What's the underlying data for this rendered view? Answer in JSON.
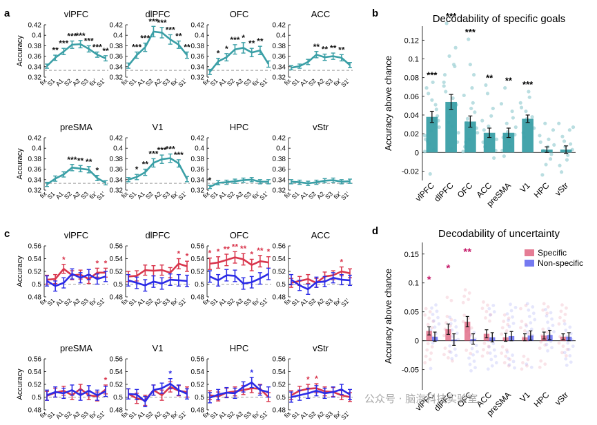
{
  "figure": {
    "panel_letters": [
      "a",
      "b",
      "c",
      "d"
    ],
    "watermark": "公众号 · 脑海科技实验室"
  },
  "colors": {
    "teal": "#3a9fa6",
    "teal_dots": "#a9d6da",
    "red": "#d9364d",
    "blue": "#2b2be6",
    "specific_fill": "#e06682",
    "nonspecific_fill": "#5d63ef",
    "star_teal_panel": "#111111",
    "star_red": "#d9364d",
    "star_blue": "#2b2be6",
    "star_d": "#c51b6a",
    "chance_line": "#999999"
  },
  "chart_data": [
    {
      "panel": "a",
      "type": "line",
      "x_ticks": [
        "fix",
        "S1",
        "A1",
        "S2",
        "A2",
        "S3",
        "fix'",
        "S1'"
      ],
      "ylabel": "Accuracy",
      "ylim": [
        0.32,
        0.42
      ],
      "y_ticks": [
        0.32,
        0.34,
        0.36,
        0.38,
        0.4,
        0.42
      ],
      "chance": 0.333,
      "subplots": [
        {
          "title": "vlPFC",
          "values": [
            0.341,
            0.357,
            0.369,
            0.382,
            0.383,
            0.374,
            0.363,
            0.356
          ],
          "errors": [
            0.004,
            0.005,
            0.006,
            0.007,
            0.007,
            0.006,
            0.005,
            0.005
          ],
          "stars": [
            "",
            "**",
            "***",
            "***",
            "***",
            "***",
            "***",
            "**"
          ]
        },
        {
          "title": "dlPFC",
          "values": [
            0.342,
            0.362,
            0.377,
            0.407,
            0.405,
            0.392,
            0.382,
            0.362
          ],
          "errors": [
            0.005,
            0.006,
            0.008,
            0.01,
            0.01,
            0.009,
            0.007,
            0.006
          ],
          "stars": [
            "",
            "***",
            "***",
            "***",
            "***",
            "***",
            "**",
            "**"
          ]
        },
        {
          "title": "OFC",
          "values": [
            0.33,
            0.35,
            0.358,
            0.373,
            0.376,
            0.367,
            0.371,
            0.345
          ],
          "errors": [
            0.005,
            0.006,
            0.007,
            0.009,
            0.01,
            0.008,
            0.008,
            0.006
          ],
          "stars": [
            "",
            "*",
            "*",
            "***",
            "*",
            "**",
            "**",
            ""
          ]
        },
        {
          "title": "ACC",
          "values": [
            0.338,
            0.341,
            0.349,
            0.363,
            0.358,
            0.36,
            0.357,
            0.343
          ],
          "errors": [
            0.004,
            0.004,
            0.005,
            0.006,
            0.006,
            0.006,
            0.006,
            0.005
          ],
          "stars": [
            "",
            "",
            "",
            "**",
            "**",
            "**",
            "**",
            ""
          ]
        },
        {
          "title": "preSMA",
          "values": [
            0.331,
            0.342,
            0.35,
            0.363,
            0.361,
            0.359,
            0.343,
            0.334
          ],
          "errors": [
            0.004,
            0.005,
            0.005,
            0.006,
            0.006,
            0.006,
            0.005,
            0.004
          ],
          "stars": [
            "",
            "",
            "",
            "***",
            "**",
            "**",
            "*",
            ""
          ]
        },
        {
          "title": "V1",
          "values": [
            0.34,
            0.345,
            0.354,
            0.372,
            0.379,
            0.381,
            0.371,
            0.341
          ],
          "errors": [
            0.004,
            0.005,
            0.006,
            0.008,
            0.008,
            0.008,
            0.007,
            0.005
          ],
          "stars": [
            "",
            "*",
            "**",
            "***",
            "***",
            "***",
            "***",
            ""
          ]
        },
        {
          "title": "HPC",
          "values": [
            0.326,
            0.334,
            0.335,
            0.337,
            0.339,
            0.34,
            0.336,
            0.336
          ],
          "errors": [
            0.003,
            0.004,
            0.004,
            0.004,
            0.004,
            0.004,
            0.004,
            0.004
          ],
          "stars": [
            "*",
            "",
            "",
            "",
            "",
            "",
            "",
            ""
          ]
        },
        {
          "title": "vStr",
          "values": [
            0.336,
            0.335,
            0.333,
            0.335,
            0.338,
            0.339,
            0.336,
            0.337
          ],
          "errors": [
            0.004,
            0.004,
            0.004,
            0.004,
            0.004,
            0.004,
            0.004,
            0.004
          ],
          "stars": [
            "",
            "",
            "",
            "",
            "",
            "",
            "",
            ""
          ]
        }
      ]
    },
    {
      "panel": "b",
      "type": "bar",
      "title": "Decodability of specific goals",
      "ylabel": "Accuracy above chance",
      "categories": [
        "vlPFC",
        "dlPFC",
        "OFC",
        "ACC",
        "preSMA",
        "V1",
        "HPC",
        "vStr"
      ],
      "values": [
        0.038,
        0.054,
        0.033,
        0.021,
        0.021,
        0.036,
        0.003,
        0.003
      ],
      "errors": [
        0.006,
        0.008,
        0.006,
        0.005,
        0.005,
        0.004,
        0.003,
        0.004
      ],
      "stars": [
        "***",
        "***",
        "***",
        "**",
        "**",
        "***",
        "",
        ""
      ],
      "ylim": [
        -0.03,
        0.135
      ],
      "y_ticks": [
        -0.02,
        0,
        0.02,
        0.04,
        0.06,
        0.08,
        0.1,
        0.12
      ],
      "y_tick_labels": [
        "-0.02",
        "0",
        "0.02",
        "0.04",
        "0.06",
        "0.08",
        "0.1",
        "0.12"
      ],
      "dots": [
        [
          0.001,
          0.012,
          -0.023,
          0.075,
          0.051,
          0.034,
          0.014,
          0.063,
          0.023,
          0.003,
          0.046,
          0.027,
          0.069,
          0.009,
          0.056,
          0.031,
          0.039,
          0.018
        ],
        [
          0.071,
          0.138,
          0.103,
          0.028,
          0.092,
          0.011,
          0.083,
          0.047,
          0.039,
          0.058,
          0.112,
          0.021,
          0.065,
          0.032,
          0.004,
          0.094,
          0.051,
          0.075
        ],
        [
          0.001,
          0.011,
          0.121,
          0.047,
          0.083,
          0.026,
          0.061,
          0.032,
          0.014,
          0.069,
          0.043,
          0.021,
          0.006,
          0.036,
          0.094,
          0.053
        ],
        [
          0.034,
          0.006,
          0.063,
          0.019,
          0.047,
          0.002,
          0.011,
          0.072,
          0.028,
          0.039,
          -0.006,
          0.014,
          0.024
        ],
        [
          0.052,
          -0.004,
          0.031,
          0.012,
          0.044,
          0.019,
          0.002,
          0.069,
          0.022,
          0.006,
          0.037,
          0.027,
          0.016
        ],
        [
          0.053,
          0.021,
          0.044,
          0.065,
          0.031,
          0.026,
          0.048,
          0.016,
          0.036,
          0.059,
          0.038
        ],
        [
          0.018,
          -0.024,
          0.031,
          0.006,
          -0.007,
          0.024,
          0.011,
          0.002,
          -0.013,
          0.014,
          -0.002,
          0.008
        ],
        [
          0.031,
          -0.021,
          0.012,
          -0.008,
          0.024,
          0.003,
          -0.014,
          0.017,
          0.006,
          -0.003,
          0.009,
          0.027
        ]
      ]
    },
    {
      "panel": "c",
      "type": "line",
      "x_ticks": [
        "fix",
        "S1",
        "A1",
        "S2",
        "A2",
        "S3",
        "fix'",
        "S1'"
      ],
      "ylabel": "Accuracy",
      "ylim": [
        0.48,
        0.56
      ],
      "y_ticks": [
        0.48,
        0.5,
        0.52,
        0.54,
        0.56
      ],
      "chance": 0.5,
      "series_names": [
        "Specific",
        "Non-specific"
      ],
      "subplots": [
        {
          "title": "vlPFC",
          "specific": [
            0.507,
            0.508,
            0.524,
            0.514,
            0.515,
            0.508,
            0.518,
            0.518
          ],
          "nonspecific": [
            0.505,
            0.497,
            0.502,
            0.516,
            0.51,
            0.515,
            0.508,
            0.512
          ],
          "err_s": [
            0.007,
            0.007,
            0.007,
            0.007,
            0.007,
            0.007,
            0.007,
            0.007
          ],
          "err_n": [
            0.008,
            0.008,
            0.008,
            0.008,
            0.008,
            0.008,
            0.008,
            0.008
          ],
          "stars_s": [
            "",
            "",
            "*",
            "",
            "",
            "",
            "*",
            "*"
          ],
          "stars_n": [
            "",
            "",
            "",
            "",
            "",
            "",
            "",
            ""
          ]
        },
        {
          "title": "dlPFC",
          "specific": [
            0.512,
            0.513,
            0.522,
            0.521,
            0.522,
            0.518,
            0.532,
            0.528
          ],
          "nonspecific": [
            0.506,
            0.502,
            0.498,
            0.504,
            0.501,
            0.507,
            0.506,
            0.505
          ],
          "err_s": [
            0.008,
            0.008,
            0.008,
            0.008,
            0.008,
            0.008,
            0.008,
            0.008
          ],
          "err_n": [
            0.009,
            0.009,
            0.009,
            0.009,
            0.009,
            0.009,
            0.009,
            0.009
          ],
          "stars_s": [
            "",
            "",
            "",
            "",
            "",
            "",
            "*",
            "*"
          ],
          "stars_n": [
            "",
            "",
            "",
            "",
            "",
            "",
            "",
            ""
          ]
        },
        {
          "title": "OFC",
          "specific": [
            0.532,
            0.534,
            0.538,
            0.542,
            0.539,
            0.53,
            0.536,
            0.534
          ],
          "nonspecific": [
            0.512,
            0.506,
            0.514,
            0.513,
            0.501,
            0.503,
            0.509,
            0.516
          ],
          "err_s": [
            0.009,
            0.009,
            0.009,
            0.009,
            0.009,
            0.009,
            0.009,
            0.009
          ],
          "err_n": [
            0.009,
            0.009,
            0.009,
            0.009,
            0.009,
            0.009,
            0.009,
            0.009
          ],
          "stars_s": [
            "*",
            "*",
            "**",
            "**",
            "**",
            "*",
            "**",
            "*"
          ],
          "stars_n": [
            "",
            "",
            "",
            "",
            "",
            "",
            "",
            ""
          ]
        },
        {
          "title": "ACC",
          "specific": [
            0.502,
            0.505,
            0.508,
            0.502,
            0.512,
            0.514,
            0.52,
            0.517
          ],
          "nonspecific": [
            0.507,
            0.498,
            0.492,
            0.503,
            0.504,
            0.51,
            0.507,
            0.506
          ],
          "err_s": [
            0.007,
            0.007,
            0.007,
            0.007,
            0.007,
            0.007,
            0.007,
            0.007
          ],
          "err_n": [
            0.008,
            0.008,
            0.008,
            0.008,
            0.008,
            0.008,
            0.008,
            0.008
          ],
          "stars_s": [
            "",
            "",
            "",
            "",
            "",
            "",
            "*",
            ""
          ],
          "stars_n": [
            "",
            "",
            "",
            "",
            "",
            "",
            "",
            ""
          ]
        },
        {
          "title": "preSMA",
          "specific": [
            0.502,
            0.507,
            0.51,
            0.503,
            0.513,
            0.503,
            0.501,
            0.512
          ],
          "nonspecific": [
            0.503,
            0.508,
            0.506,
            0.511,
            0.503,
            0.51,
            0.503,
            0.509
          ],
          "err_s": [
            0.007,
            0.007,
            0.007,
            0.007,
            0.007,
            0.007,
            0.007,
            0.007
          ],
          "err_n": [
            0.008,
            0.008,
            0.008,
            0.008,
            0.008,
            0.008,
            0.008,
            0.008
          ],
          "stars_s": [
            "",
            "",
            "",
            "",
            "",
            "",
            "",
            "*"
          ],
          "stars_n": [
            "",
            "",
            "",
            "",
            "",
            "",
            "",
            ""
          ]
        },
        {
          "title": "V1",
          "specific": [
            0.505,
            0.498,
            0.495,
            0.511,
            0.503,
            0.516,
            0.51,
            0.508
          ],
          "nonspecific": [
            0.505,
            0.504,
            0.493,
            0.511,
            0.514,
            0.521,
            0.511,
            0.505
          ],
          "err_s": [
            0.008,
            0.008,
            0.008,
            0.008,
            0.008,
            0.008,
            0.008,
            0.008
          ],
          "err_n": [
            0.008,
            0.008,
            0.008,
            0.008,
            0.008,
            0.008,
            0.008,
            0.008
          ],
          "stars_s": [
            "",
            "",
            "",
            "",
            "",
            "",
            "",
            ""
          ],
          "stars_n": [
            "",
            "",
            "",
            "",
            "",
            "*",
            "",
            ""
          ]
        },
        {
          "title": "HPC",
          "specific": [
            0.503,
            0.501,
            0.507,
            0.509,
            0.511,
            0.514,
            0.513,
            0.5
          ],
          "nonspecific": [
            0.499,
            0.504,
            0.507,
            0.506,
            0.516,
            0.523,
            0.511,
            0.508
          ],
          "err_s": [
            0.007,
            0.007,
            0.007,
            0.007,
            0.007,
            0.007,
            0.007,
            0.007
          ],
          "err_n": [
            0.008,
            0.008,
            0.008,
            0.008,
            0.008,
            0.008,
            0.008,
            0.008
          ],
          "stars_s": [
            "",
            "",
            "",
            "",
            "",
            "",
            "",
            ""
          ],
          "stars_n": [
            "",
            "",
            "",
            "",
            "",
            "*",
            "",
            ""
          ]
        },
        {
          "title": "vStr",
          "specific": [
            0.503,
            0.51,
            0.513,
            0.514,
            0.509,
            0.508,
            0.503,
            0.5
          ],
          "nonspecific": [
            0.5,
            0.503,
            0.506,
            0.51,
            0.506,
            0.508,
            0.512,
            0.504
          ],
          "err_s": [
            0.007,
            0.007,
            0.007,
            0.007,
            0.007,
            0.007,
            0.007,
            0.007
          ],
          "err_n": [
            0.008,
            0.008,
            0.008,
            0.008,
            0.008,
            0.008,
            0.008,
            0.008
          ],
          "stars_s": [
            "",
            "",
            "*",
            "*",
            "",
            "",
            "",
            ""
          ],
          "stars_n": [
            "",
            "",
            "",
            "",
            "",
            "",
            "",
            ""
          ]
        }
      ]
    },
    {
      "panel": "d",
      "type": "bar",
      "title": "Decodability of uncertainty",
      "ylabel": "Accuracy above chance",
      "categories": [
        "vlPFC",
        "dlPFC",
        "OFC",
        "ACC",
        "preSMA",
        "V1",
        "HPC",
        "vStr"
      ],
      "legend": [
        "Specific",
        "Non-specific"
      ],
      "legend_loc": "top-right",
      "specific": [
        0.017,
        0.02,
        0.033,
        0.012,
        0.006,
        0.006,
        0.009,
        0.007
      ],
      "nonspecific": [
        0.007,
        0.002,
        0.003,
        0.006,
        0.008,
        0.009,
        0.01,
        0.007
      ],
      "err_s": [
        0.007,
        0.009,
        0.009,
        0.007,
        0.007,
        0.006,
        0.006,
        0.005
      ],
      "err_n": [
        0.008,
        0.01,
        0.009,
        0.008,
        0.008,
        0.008,
        0.008,
        0.007
      ],
      "stars": [
        "*",
        "*",
        "**",
        "",
        "",
        "",
        "",
        ""
      ],
      "ylim": [
        -0.085,
        0.17
      ],
      "y_ticks": [
        -0.05,
        0,
        0.05,
        0.1,
        0.15
      ],
      "y_tick_labels": [
        "-0.05",
        "0",
        "0.05",
        "0.1",
        "0.15"
      ]
    }
  ]
}
